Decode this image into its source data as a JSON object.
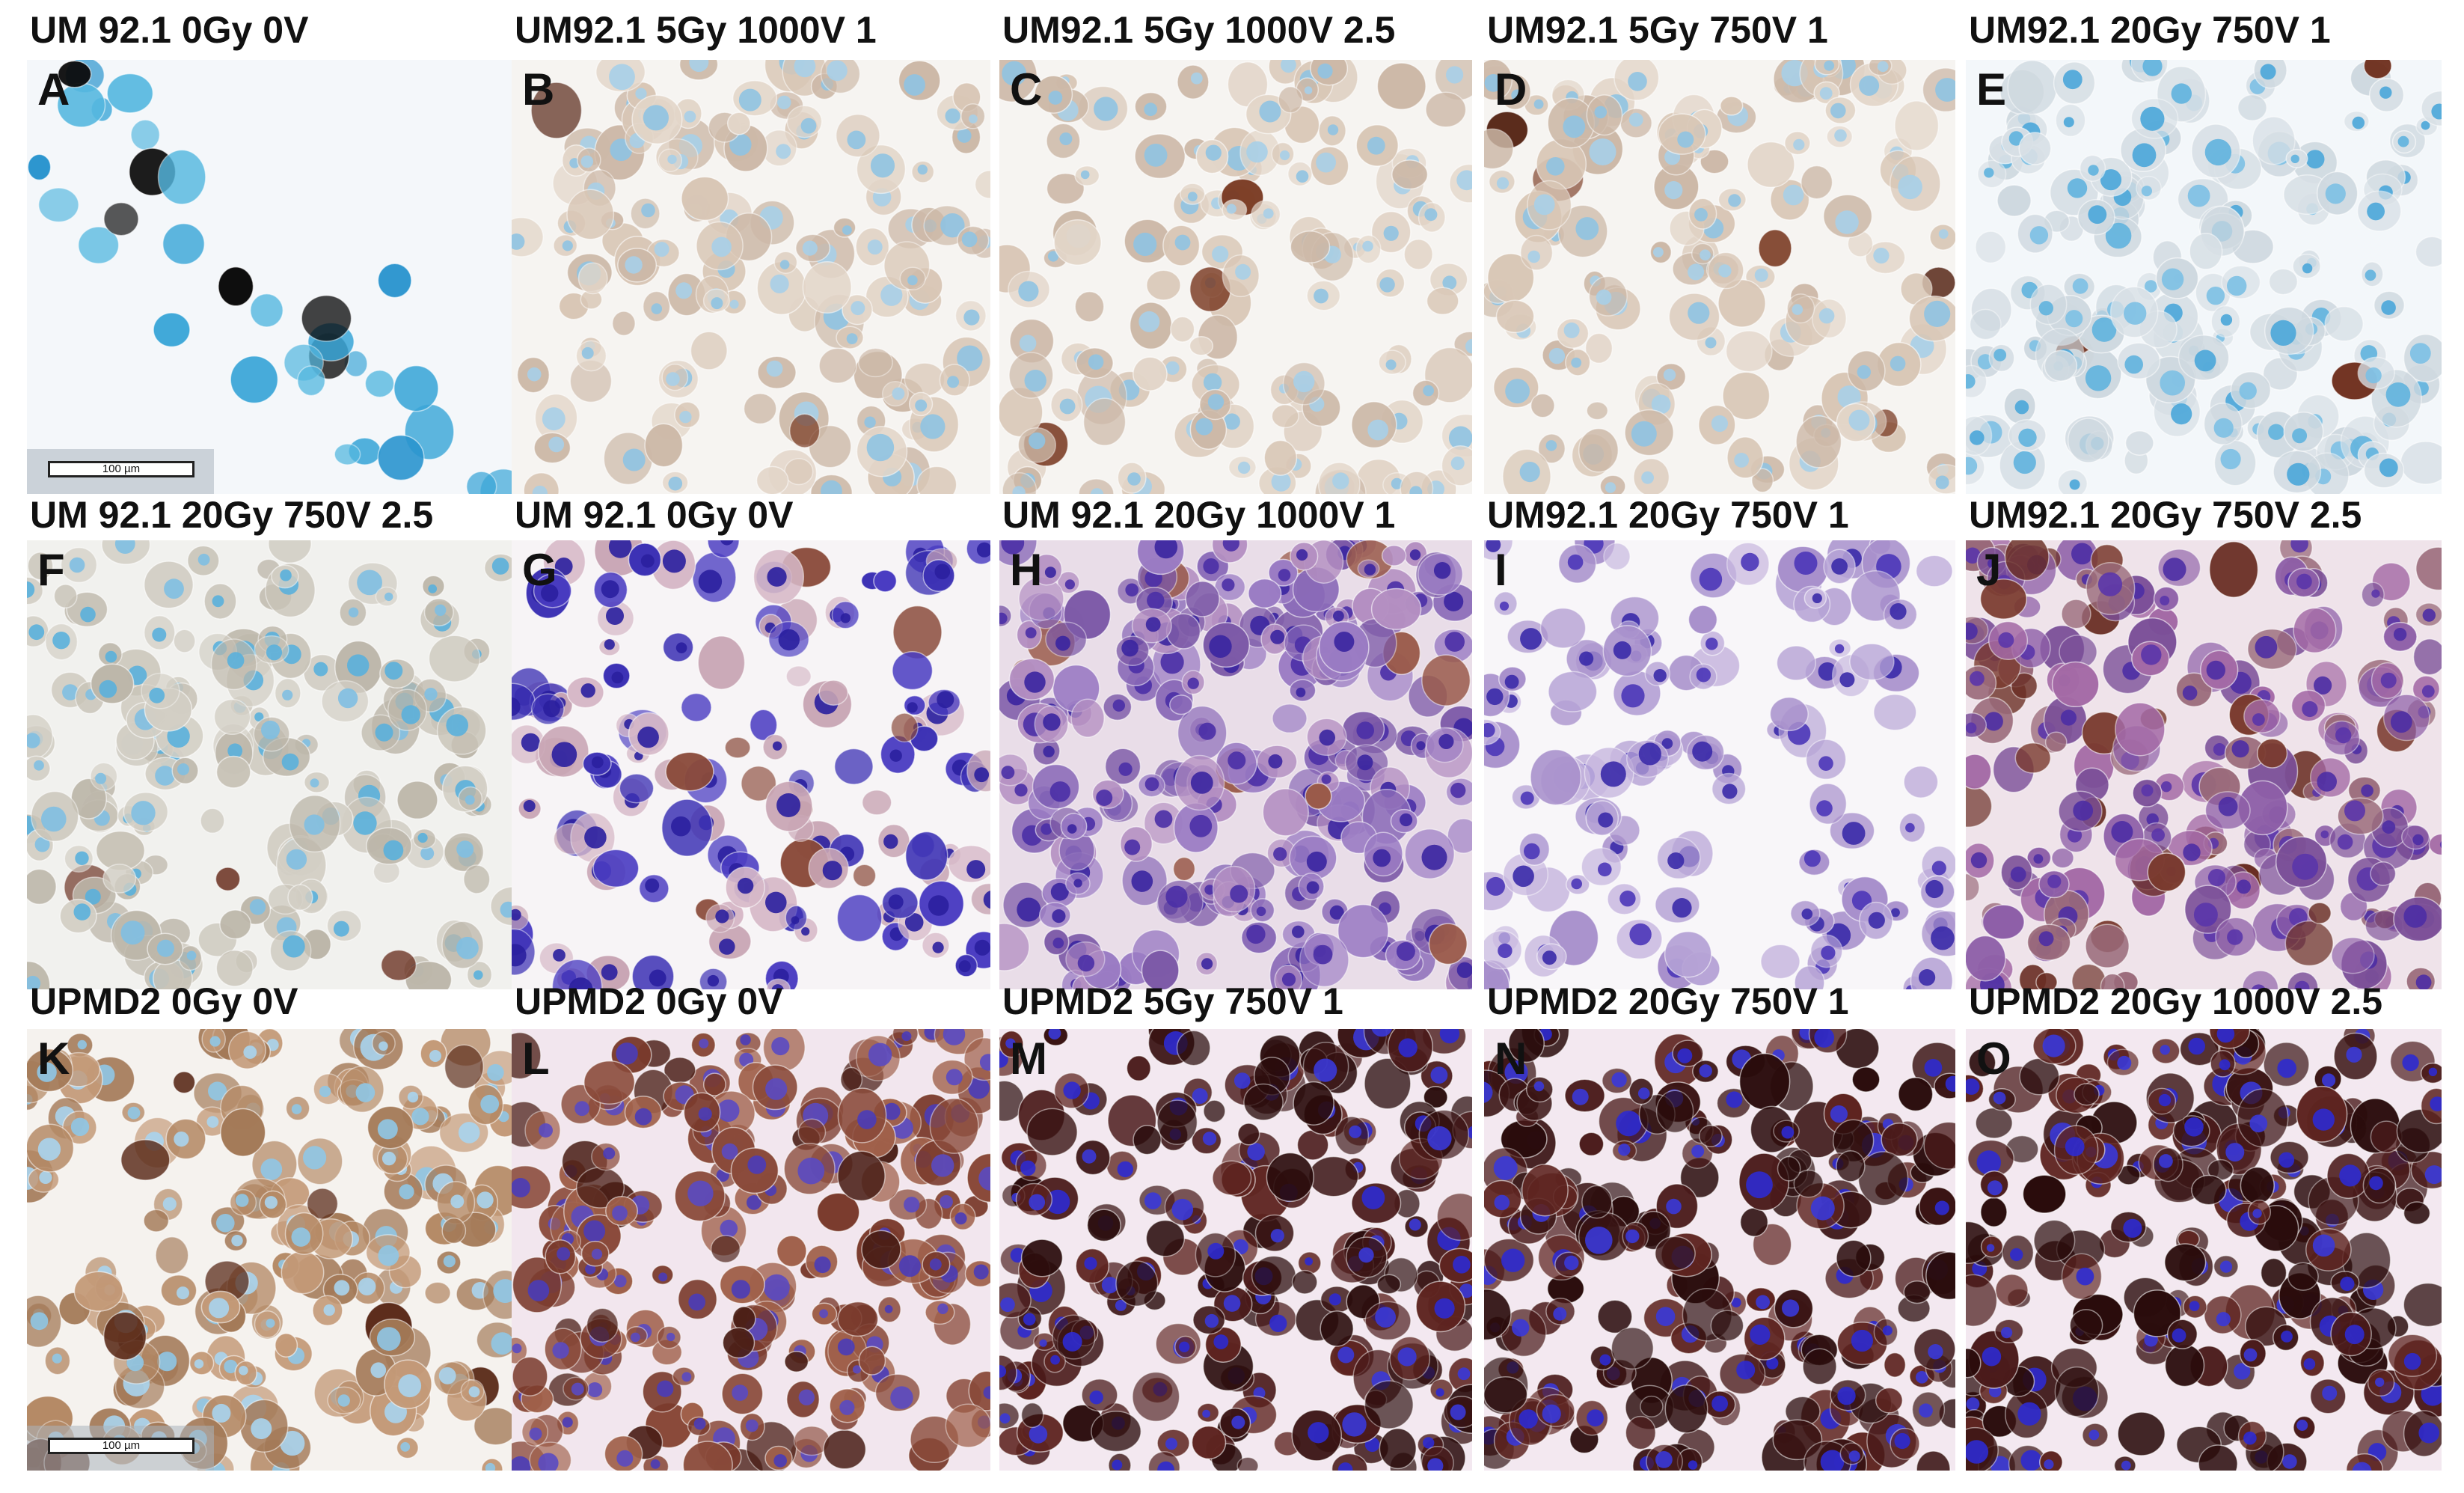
{
  "panels": [
    {
      "letter": "A",
      "title": "UM 92.1 0Gy 0V",
      "stain": "blue-black",
      "scale_label": "100 µm"
    },
    {
      "letter": "B",
      "title": "UM92.1 5Gy 1000V 1",
      "stain": "pale-tan"
    },
    {
      "letter": "C",
      "title": "UM92.1 5Gy 1000V 2.5",
      "stain": "pale-tan"
    },
    {
      "letter": "D",
      "title": "UM92.1 5Gy 750V 1",
      "stain": "pale-tan"
    },
    {
      "letter": "E",
      "title": "UM92.1 20Gy 750V 1",
      "stain": "pale-blue"
    },
    {
      "letter": "F",
      "title": "UM 92.1 20Gy 750V 2.5",
      "stain": "pale-grey"
    },
    {
      "letter": "G",
      "title": "UM 92.1 0Gy 0V",
      "stain": "purple-sparse"
    },
    {
      "letter": "H",
      "title": "UM 92.1 20Gy 1000V 1",
      "stain": "purple-dense"
    },
    {
      "letter": "I",
      "title": "UM92.1 20Gy 750V 1",
      "stain": "purple-light"
    },
    {
      "letter": "J",
      "title": "UM92.1 20Gy 750V 2.5",
      "stain": "purple-brown"
    },
    {
      "letter": "K",
      "title": "UPMD2 0Gy 0V",
      "stain": "brown-blue",
      "scale_label": "100 µm"
    },
    {
      "letter": "L",
      "title": "UPMD2 0Gy 0V",
      "stain": "brown-purple"
    },
    {
      "letter": "M",
      "title": "UPMD2 5Gy 750V 1",
      "stain": "dark-brown"
    },
    {
      "letter": "N",
      "title": "UPMD2 20Gy 750V 1",
      "stain": "dark-brown"
    },
    {
      "letter": "O",
      "title": "UPMD2 20Gy 1000V 2.5",
      "stain": "dark-brown"
    }
  ],
  "palettes": {
    "blue-black": {
      "bg": "#f4f7fa",
      "cells": [
        "#3aa6d8",
        "#2b95cf",
        "#55b8e0"
      ],
      "dark": [
        "#0a0a0a",
        "#1c1c1c"
      ],
      "density": 0.35,
      "darkFrac": 0.35
    },
    "pale-tan": {
      "bg": "#f6f4f1",
      "cells": [
        "#d9c7b6",
        "#cdb9a8",
        "#e3d6c9"
      ],
      "nuc": [
        "#8fc3e2",
        "#a7cfe8"
      ],
      "dark": [
        "#7a3a22",
        "#5a2a1a"
      ],
      "density": 0.6,
      "darkFrac": 0.03
    },
    "pale-blue": {
      "bg": "#f3f7fa",
      "cells": [
        "#d8e0e6",
        "#cfd9e0"
      ],
      "nuc": [
        "#5fb3de",
        "#4aa6d9",
        "#7cc0e4"
      ],
      "dark": [
        "#6e2e1c"
      ],
      "density": 0.75,
      "darkFrac": 0.02
    },
    "pale-grey": {
      "bg": "#f1f1ee",
      "cells": [
        "#c9c4b8",
        "#bdb7aa",
        "#d3cfc5"
      ],
      "nuc": [
        "#5ab0dc",
        "#7fbfe2"
      ],
      "dark": [
        "#6a3020"
      ],
      "density": 0.75,
      "darkFrac": 0.02
    },
    "purple-sparse": {
      "bg": "#f7f4f6",
      "cells": [
        "#3d32b5",
        "#4a3cc2",
        "#d7b9c8",
        "#c9a6b5"
      ],
      "nuc": [
        "#2a1f9e"
      ],
      "dark": [
        "#8a4a3a"
      ],
      "density": 0.6,
      "darkFrac": 0.08
    },
    "purple-dense": {
      "bg": "#e9dde8",
      "cells": [
        "#8a6ab8",
        "#9b7cc4",
        "#b48fc2",
        "#7d5aa8"
      ],
      "nuc": [
        "#4a2fa6",
        "#3a25a0"
      ],
      "dark": [
        "#9a5a4a"
      ],
      "density": 1.0,
      "darkFrac": 0.06
    },
    "purple-light": {
      "bg": "#f8f6f9",
      "cells": [
        "#b6a3d6",
        "#a890cc",
        "#c9b9e0"
      ],
      "nuc": [
        "#4b36b8",
        "#3a2aa8"
      ],
      "dark": [
        "#8a5a6a"
      ],
      "density": 0.55,
      "darkFrac": 0.02
    },
    "purple-brown": {
      "bg": "#efe3ea",
      "cells": [
        "#8e5fa8",
        "#a46aa6",
        "#9a6a7a",
        "#7b4f98"
      ],
      "nuc": [
        "#4c2ea4",
        "#5a35aa"
      ],
      "dark": [
        "#7a3a2e",
        "#6a2e24"
      ],
      "density": 0.9,
      "darkFrac": 0.12
    },
    "brown-blue": {
      "bg": "#f5f2ee",
      "cells": [
        "#b58a66",
        "#a47a58",
        "#c49a78"
      ],
      "nuc": [
        "#8fc6e6",
        "#a8d4ee"
      ],
      "dark": [
        "#5a2a18"
      ],
      "density": 0.8,
      "darkFrac": 0.04
    },
    "brown-purple": {
      "bg": "#f2e6ee",
      "cells": [
        "#8a4a3a",
        "#7a3a2c",
        "#a0604a"
      ],
      "nuc": [
        "#4a3cb8",
        "#5a4ac2"
      ],
      "dark": [
        "#4a1e16"
      ],
      "density": 0.9,
      "darkFrac": 0.15
    },
    "dark-brown": {
      "bg": "#f3e8f0",
      "cells": [
        "#4a1a1a",
        "#3a1414",
        "#5e2420"
      ],
      "nuc": [
        "#2e2ad0",
        "#3a38d8"
      ],
      "dark": [
        "#2a0c0c"
      ],
      "density": 0.95,
      "darkFrac": 0.3
    }
  }
}
